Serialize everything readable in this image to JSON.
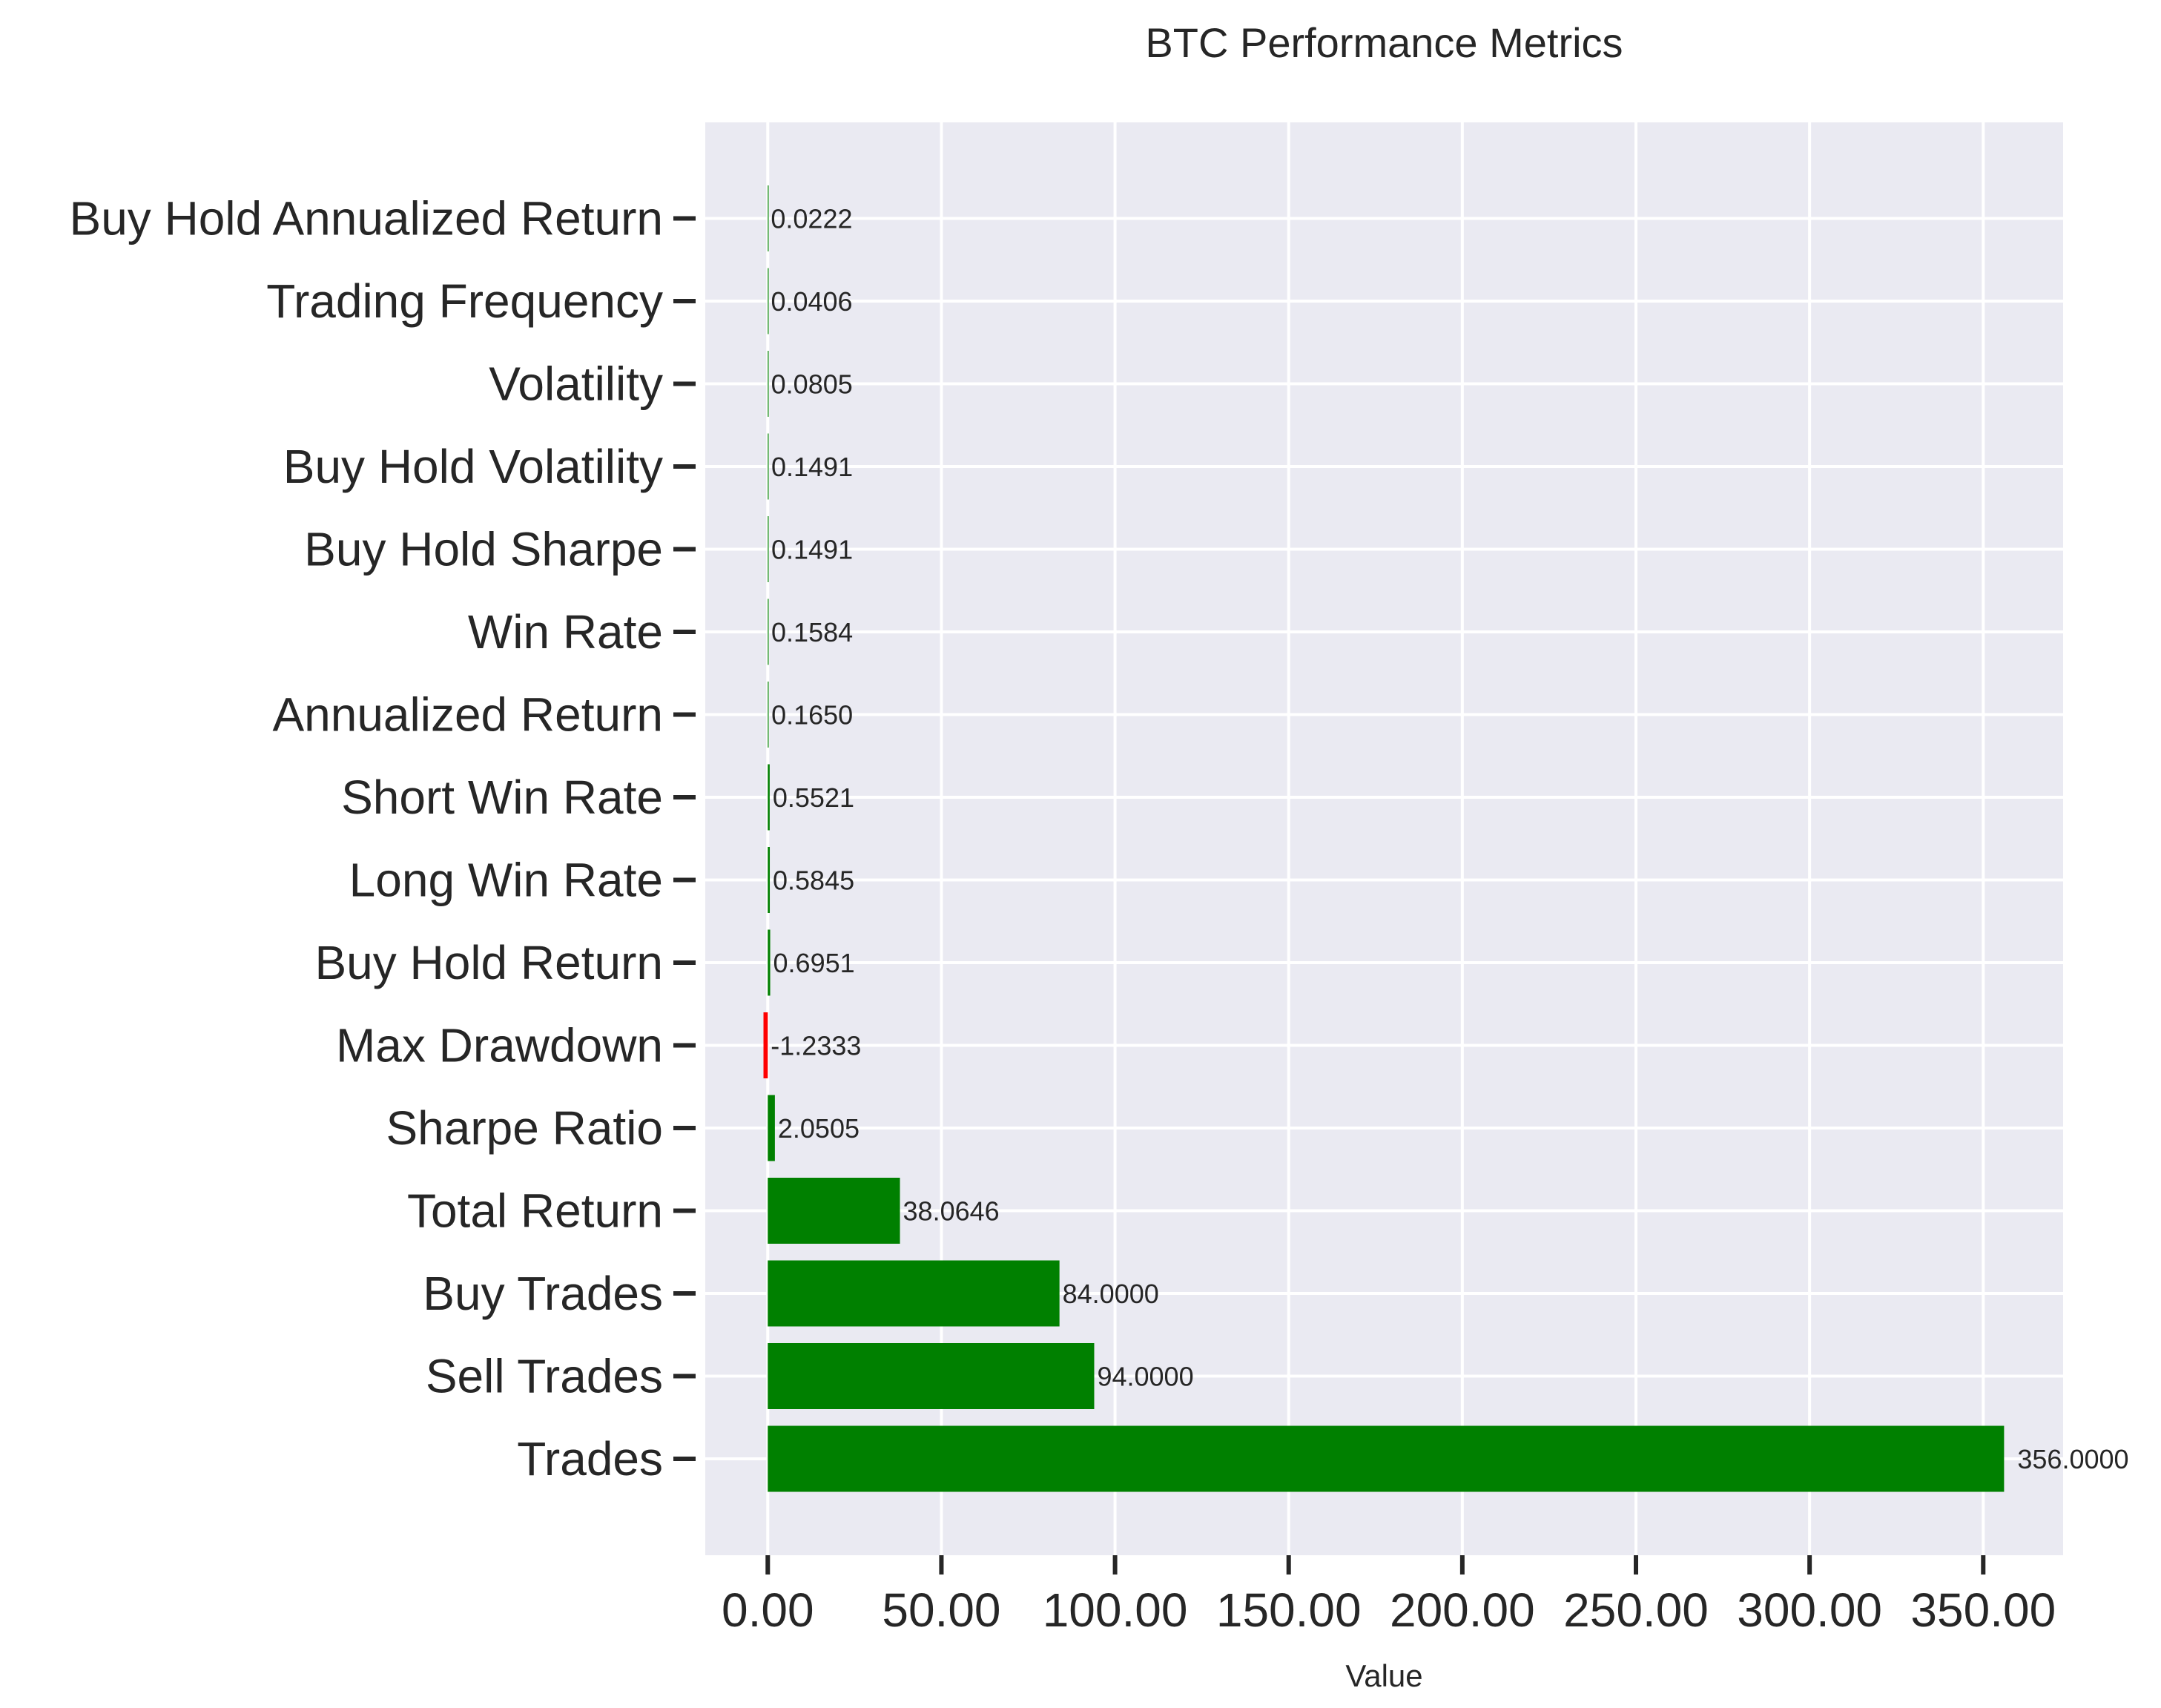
{
  "chart_data": {
    "type": "bar",
    "orientation": "horizontal",
    "title": "BTC Performance Metrics",
    "xlabel": "Value",
    "ylabel": "",
    "xlim": [
      -18,
      373
    ],
    "xticks": [
      0,
      50,
      100,
      150,
      200,
      250,
      300,
      350
    ],
    "xtick_labels": [
      "0.00",
      "50.00",
      "100.00",
      "150.00",
      "200.00",
      "250.00",
      "300.00",
      "350.00"
    ],
    "grid": true,
    "categories": [
      "Trades",
      "Sell Trades",
      "Buy Trades",
      "Total Return",
      "Sharpe Ratio",
      "Max Drawdown",
      "Buy Hold Return",
      "Long Win Rate",
      "Short Win Rate",
      "Annualized Return",
      "Win Rate",
      "Buy Hold Sharpe",
      "Buy Hold Volatility",
      "Volatility",
      "Trading Frequency",
      "Buy Hold Annualized Return"
    ],
    "values": [
      356.0,
      94.0,
      84.0,
      38.0646,
      2.0505,
      -1.2333,
      0.6951,
      0.5845,
      0.5521,
      0.165,
      0.1584,
      0.1491,
      0.1491,
      0.0805,
      0.0406,
      0.0222
    ],
    "value_labels": [
      "356.0000",
      "94.0000",
      "84.0000",
      "38.0646",
      "2.0505",
      "-1.2333",
      "0.6951",
      "0.5845",
      "0.5521",
      "0.1650",
      "0.1584",
      "0.1491",
      "0.1491",
      "0.0805",
      "0.0406",
      "0.0222"
    ],
    "colors": {
      "positive": "#008000",
      "negative": "#ff0000",
      "background": "#eaeaf2",
      "grid": "#ffffff",
      "text": "#262626"
    }
  }
}
